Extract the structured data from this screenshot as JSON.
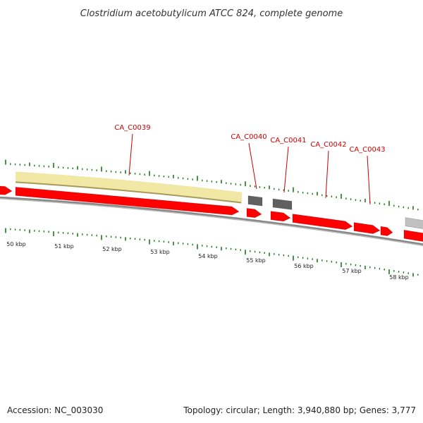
{
  "title": "Clostridium acetobutylicum ATCC 824, complete genome",
  "footer": {
    "accession": "Accession: NC_003030",
    "summary": "Topology: circular; Length: 3,940,880 bp; Genes: 3,777"
  },
  "colors": {
    "forward_gene": "#ff0000",
    "reverse_gene_dark": "#606060",
    "reverse_gene_light": "#c0c0c0",
    "highlight_band": "#f2e8a6",
    "highlight_band_edge": "#a89a5a",
    "backbone": "#888888",
    "ticks": "#1b7a1b",
    "gene_label": "#cc0000"
  },
  "gene_labels": [
    "CA_C0039",
    "CA_C0040",
    "CA_C0041",
    "CA_C0042",
    "CA_C0043"
  ],
  "ruler": {
    "unit": "kbp",
    "labels": [
      "50 kbp",
      "51 kbp",
      "52 kbp",
      "53 kbp",
      "54 kbp",
      "55 kbp",
      "56 kbp",
      "57 kbp",
      "58 kbp"
    ]
  }
}
